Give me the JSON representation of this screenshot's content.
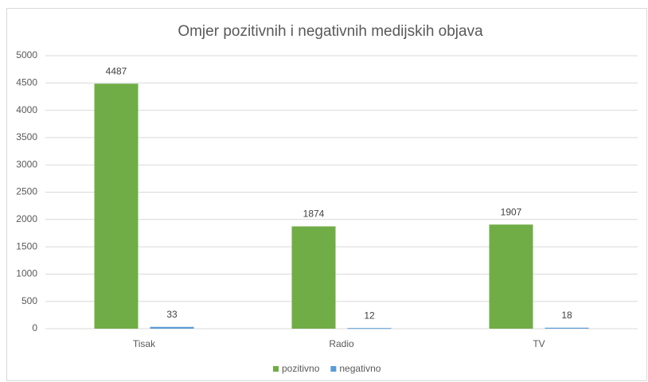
{
  "chart_data": {
    "type": "bar",
    "title": "Omjer pozitivnih i negativnih medijskih objava",
    "categories": [
      "Tisak",
      "Radio",
      "TV"
    ],
    "series": [
      {
        "name": "pozitivno",
        "color": "#70ad47",
        "values": [
          4487,
          1874,
          1907
        ]
      },
      {
        "name": "negativno",
        "color": "#5b9bd5",
        "values": [
          33,
          12,
          18
        ]
      }
    ],
    "ylim": [
      0,
      5000
    ],
    "yticks": [
      0,
      500,
      1000,
      1500,
      2000,
      2500,
      3000,
      3500,
      4000,
      4500,
      5000
    ],
    "grid": true,
    "legend": "bottom"
  }
}
